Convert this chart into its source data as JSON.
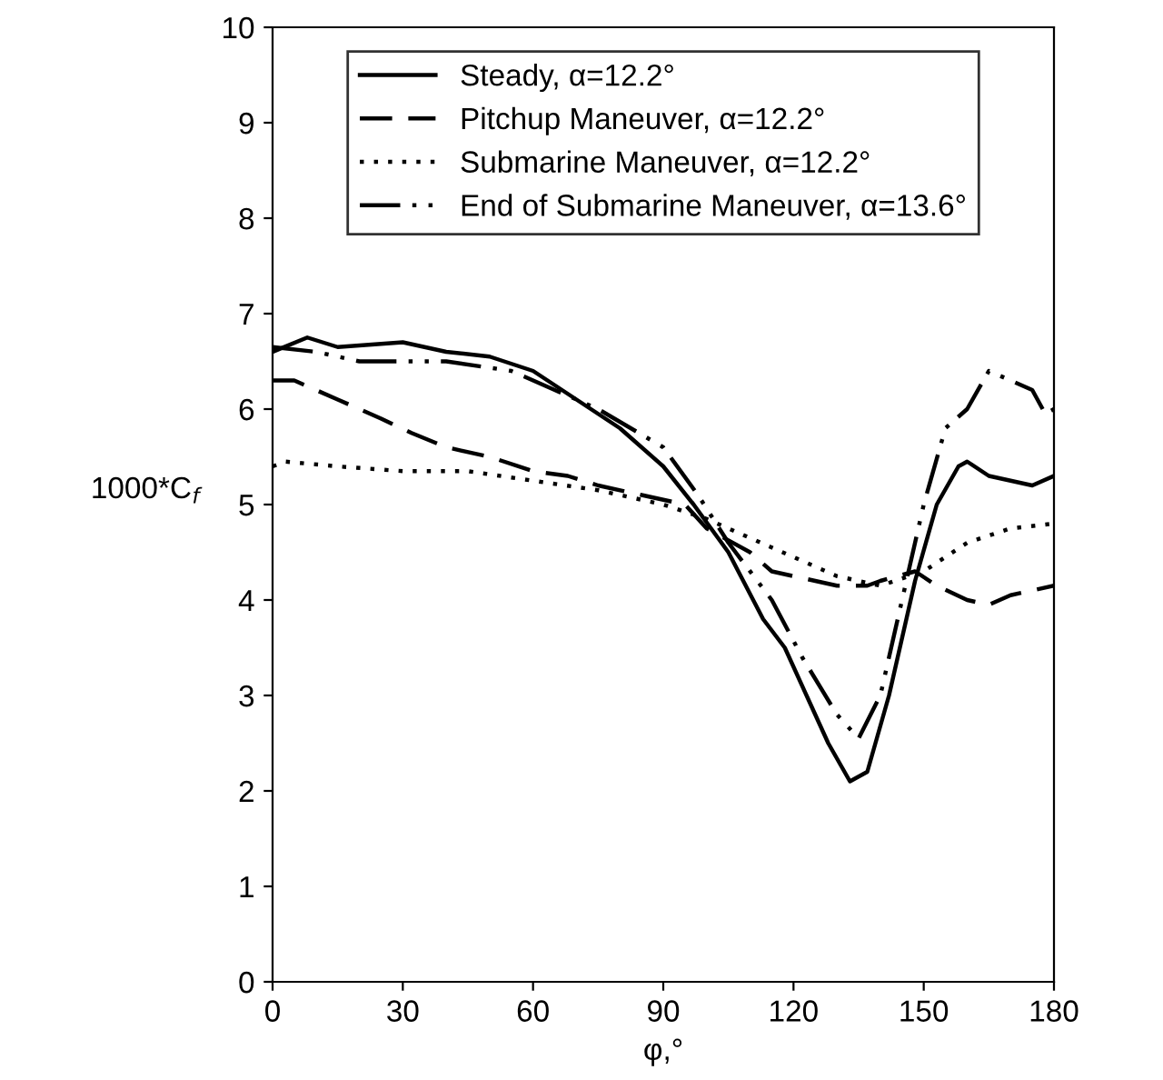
{
  "chart_data": {
    "type": "line",
    "xlabel": "φ,°",
    "ylabel": "1000*C$_{f}$",
    "xlim": [
      0,
      180
    ],
    "xticks": [
      0,
      30,
      60,
      90,
      120,
      150,
      180
    ],
    "ylim": [
      0,
      10
    ],
    "yticks": [
      0,
      1,
      2,
      3,
      4,
      5,
      6,
      7,
      8,
      9,
      10
    ],
    "grid": false,
    "legend": "top",
    "marker": "none",
    "series": [
      {
        "name": "Steady, α=12.2°",
        "color": "#000000",
        "line_style": "solid",
        "x": [
          0,
          8,
          15,
          30,
          40,
          50,
          60,
          70,
          80,
          90,
          97,
          105,
          113,
          118,
          123,
          128,
          133,
          137,
          142,
          148,
          153,
          158,
          160,
          165,
          170,
          175,
          180
        ],
        "values": [
          6.6,
          6.75,
          6.65,
          6.7,
          6.6,
          6.55,
          6.4,
          6.1,
          5.8,
          5.4,
          5.0,
          4.5,
          3.8,
          3.5,
          3.0,
          2.5,
          2.1,
          2.2,
          3.0,
          4.2,
          5.0,
          5.4,
          5.45,
          5.3,
          5.25,
          5.2,
          5.3
        ]
      },
      {
        "name": "Pitchup Maneuver, α=12.2°",
        "color": "#000000",
        "line_style": "dashed",
        "x": [
          0,
          5,
          15,
          25,
          32,
          40,
          50,
          60,
          68,
          75,
          85,
          95,
          100,
          110,
          115,
          120,
          130,
          137,
          140,
          148,
          153,
          160,
          165,
          170,
          175,
          180
        ],
        "values": [
          6.3,
          6.3,
          6.1,
          5.9,
          5.75,
          5.6,
          5.5,
          5.35,
          5.3,
          5.2,
          5.1,
          5.0,
          4.75,
          4.5,
          4.3,
          4.25,
          4.15,
          4.15,
          4.2,
          4.3,
          4.15,
          4.0,
          3.95,
          4.05,
          4.1,
          4.15
        ]
      },
      {
        "name": "Submarine Maneuver, α=12.2°",
        "color": "#000000",
        "line_style": "dotted",
        "x": [
          0,
          3,
          15,
          30,
          45,
          60,
          75,
          90,
          100,
          110,
          120,
          130,
          140,
          150,
          160,
          170,
          180
        ],
        "values": [
          5.4,
          5.45,
          5.4,
          5.35,
          5.35,
          5.25,
          5.15,
          5.0,
          4.85,
          4.65,
          4.45,
          4.25,
          4.15,
          4.3,
          4.6,
          4.75,
          4.8
        ]
      },
      {
        "name": "End of Submarine Maneuver, α=13.6°",
        "color": "#000000",
        "line_style": "dashdot",
        "x": [
          0,
          10,
          20,
          40,
          55,
          65,
          75,
          90,
          98,
          105,
          115,
          122,
          130,
          135,
          140,
          145,
          150,
          155,
          160,
          165,
          170,
          175,
          178,
          180
        ],
        "values": [
          6.65,
          6.6,
          6.5,
          6.5,
          6.4,
          6.2,
          6.0,
          5.6,
          5.1,
          4.6,
          4.0,
          3.4,
          2.8,
          2.55,
          3.0,
          4.0,
          5.0,
          5.8,
          6.0,
          6.4,
          6.3,
          6.2,
          5.95,
          6.0
        ]
      }
    ]
  }
}
